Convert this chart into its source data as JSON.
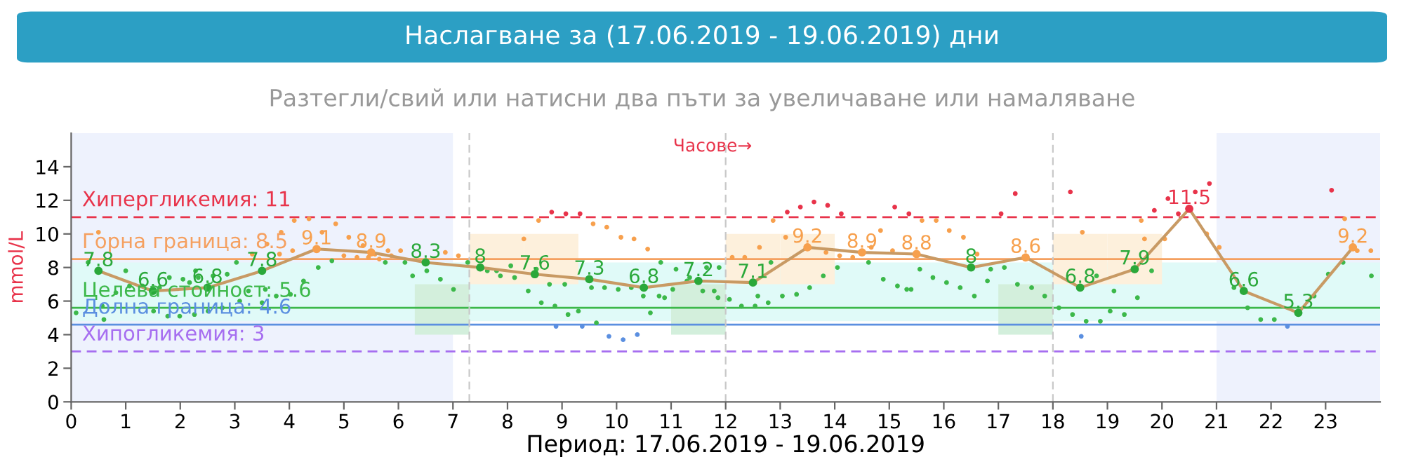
{
  "chart_data": {
    "type": "line",
    "title": "Наслагване за (17.06.2019 - 19.06.2019) дни",
    "subtitle": "Разтегли/свий или натисни два пъти за увеличаване или намаляване",
    "xlabel": "Период: 17.06.2019 - 19.06.2019",
    "ylabel": "mmol/L",
    "xlim": [
      0,
      24
    ],
    "xticks": [
      0,
      1,
      2,
      3,
      4,
      5,
      6,
      7,
      8,
      9,
      10,
      11,
      12,
      13,
      14,
      15,
      16,
      17,
      18,
      19,
      20,
      21,
      22,
      23
    ],
    "ylim": [
      0,
      16
    ],
    "yticks": [
      0,
      2,
      4,
      6,
      8,
      10,
      12,
      14
    ],
    "grid": false,
    "legend": false,
    "marker": "circle",
    "line_style": "solid",
    "annotations": [
      "Часове→"
    ],
    "series": [
      {
        "type": "scatter",
        "x": [
          0.09,
          0.31,
          0.5,
          0.57,
          0.6,
          0.82,
          1.0,
          1.07,
          1.31,
          1.51,
          1.62,
          1.77,
          1.8,
          1.99,
          2.05,
          2.17,
          2.26,
          2.28,
          2.33,
          2.51,
          2.6,
          2.77,
          2.86,
          3.03,
          3.09,
          3.25,
          3.32,
          3.5,
          3.56,
          3.59,
          3.76,
          3.82,
          3.85,
          4.02,
          4.06,
          4.09,
          4.26,
          4.36,
          4.53,
          4.6,
          4.78,
          4.85,
          5.0,
          5.09,
          5.24,
          5.35,
          5.45,
          5.57,
          5.65,
          5.76,
          5.81,
          5.87,
          6.04,
          6.12,
          6.26,
          6.52,
          6.77,
          6.86,
          7.01,
          7.1,
          7.27,
          7.63,
          7.8,
          7.87,
          8.06,
          8.13,
          8.3,
          8.38,
          8.53,
          8.57,
          8.62,
          8.77,
          8.81,
          8.87,
          8.89,
          9.05,
          9.07,
          9.11,
          9.3,
          9.33,
          9.37,
          9.54,
          9.57,
          9.63,
          9.78,
          9.82,
          9.86,
          10.03,
          10.08,
          10.12,
          10.27,
          10.32,
          10.38,
          10.49,
          10.57,
          10.62,
          10.78,
          10.81,
          10.88,
          11.03,
          11.09,
          11.29,
          11.34,
          11.58,
          11.65,
          11.79,
          11.86,
          11.88,
          12.07,
          12.12,
          12.29,
          12.35,
          12.54,
          12.59,
          12.62,
          12.78,
          12.83,
          12.87,
          13.04,
          13.1,
          13.13,
          13.3,
          13.37,
          13.54,
          13.62,
          13.79,
          13.84,
          13.87,
          14.05,
          14.09,
          14.12,
          14.33,
          14.62,
          14.67,
          14.84,
          14.89,
          15.06,
          15.1,
          15.15,
          15.32,
          15.36,
          15.4,
          15.56,
          15.6,
          15.8,
          15.86,
          16.05,
          16.1,
          16.3,
          16.36,
          16.56,
          16.61,
          16.8,
          16.86,
          17.05,
          17.11,
          17.31,
          17.35,
          17.61,
          17.85,
          18.11,
          18.32,
          18.36,
          18.52,
          18.54,
          18.61,
          18.8,
          18.87,
          19.05,
          19.12,
          19.31,
          19.55,
          19.62,
          19.68,
          19.81,
          19.86,
          20.05,
          20.11,
          20.3,
          20.61,
          20.82,
          20.87,
          21.05,
          21.32,
          21.57,
          21.81,
          22.06,
          22.3,
          22.79,
          23.05,
          23.11,
          23.32,
          23.35,
          23.58,
          23.83,
          23.84
        ],
        "values": [
          5.3,
          8.3,
          10.1,
          5.7,
          4.9,
          6.5,
          7.8,
          6.9,
          6.9,
          5.4,
          6.8,
          5.1,
          7.4,
          5.1,
          7.3,
          7.1,
          5.2,
          7.8,
          7.4,
          5.4,
          7.5,
          5.6,
          7.6,
          8.3,
          6.0,
          6.6,
          8.8,
          5.9,
          6.7,
          9.4,
          6.3,
          8.8,
          10.1,
          6.4,
          9.0,
          10.8,
          7.2,
          10.9,
          8.0,
          10.1,
          8.4,
          10.6,
          8.7,
          9.8,
          8.6,
          9.3,
          8.6,
          8.8,
          8.5,
          8.3,
          9.0,
          8.7,
          9.0,
          8.3,
          7.5,
          7.8,
          7.3,
          8.9,
          6.7,
          8.7,
          8.3,
          7.8,
          7.8,
          7.5,
          8.1,
          7.4,
          9.7,
          6.6,
          7.9,
          10.8,
          5.9,
          7.0,
          11.3,
          5.7,
          4.5,
          7.0,
          11.2,
          5.2,
          5.4,
          11.2,
          4.5,
          6.8,
          10.6,
          4.7,
          6.8,
          10.4,
          3.9,
          6.7,
          9.8,
          3.7,
          6.8,
          9.7,
          4.0,
          6.3,
          9.1,
          5.3,
          6.3,
          8.3,
          6.2,
          6.7,
          7.9,
          7.2,
          7.4,
          6.6,
          8.0,
          6.6,
          6.2,
          8.0,
          6.1,
          8.6,
          5.7,
          8.6,
          5.7,
          6.3,
          9.2,
          5.9,
          8.3,
          10.8,
          6.3,
          9.8,
          11.3,
          6.4,
          11.6,
          6.8,
          11.9,
          7.5,
          8.9,
          11.7,
          8.0,
          8.7,
          11.2,
          8.6,
          8.3,
          9.2,
          10.2,
          7.3,
          9.0,
          11.6,
          6.9,
          6.7,
          11.2,
          6.7,
          7.9,
          10.8,
          7.4,
          10.8,
          7.1,
          10.2,
          6.8,
          9.8,
          6.3,
          8.8,
          7.2,
          7.9,
          11.2,
          8.0,
          12.4,
          7.0,
          6.8,
          6.3,
          5.6,
          12.5,
          5.2,
          3.9,
          10.1,
          4.8,
          7.5,
          4.8,
          5.4,
          6.6,
          5.2,
          6.2,
          10.8,
          9.7,
          7.8,
          11.4,
          9.7,
          12.1,
          11.2,
          12.5,
          10.0,
          13.0,
          9.2,
          6.8,
          5.6,
          4.9,
          4.9,
          4.5,
          6.3,
          7.6,
          12.6,
          8.3,
          10.9,
          9.0,
          9.0,
          7.5
        ],
        "colors": [
          "#3cb84a",
          "#3cb84a",
          "#f7a04d",
          "#3cb84a",
          "#3cb84a",
          "#3cb84a",
          "#3cb84a",
          "#3cb84a",
          "#3cb84a",
          "#3cb84a",
          "#3cb84a",
          "#3cb84a",
          "#3cb84a",
          "#3cb84a",
          "#3cb84a",
          "#3cb84a",
          "#3cb84a",
          "#3cb84a",
          "#3cb84a",
          "#3cb84a",
          "#3cb84a",
          "#3cb84a",
          "#3cb84a",
          "#3cb84a",
          "#3cb84a",
          "#3cb84a",
          "#f7a04d",
          "#3cb84a",
          "#3cb84a",
          "#f7a04d",
          "#3cb84a",
          "#f7a04d",
          "#f7a04d",
          "#3cb84a",
          "#f7a04d",
          "#f7a04d",
          "#3cb84a",
          "#f7a04d",
          "#3cb84a",
          "#f7a04d",
          "#3cb84a",
          "#f7a04d",
          "#f7a04d",
          "#f7a04d",
          "#f7a04d",
          "#f7a04d",
          "#f7a04d",
          "#f7a04d",
          "#f7a04d",
          "#3cb84a",
          "#f7a04d",
          "#f7a04d",
          "#f7a04d",
          "#3cb84a",
          "#3cb84a",
          "#3cb84a",
          "#3cb84a",
          "#f7a04d",
          "#3cb84a",
          "#f7a04d",
          "#3cb84a",
          "#3cb84a",
          "#3cb84a",
          "#3cb84a",
          "#3cb84a",
          "#3cb84a",
          "#f7a04d",
          "#3cb84a",
          "#3cb84a",
          "#f7a04d",
          "#3cb84a",
          "#3cb84a",
          "#e8334a",
          "#3cb84a",
          "#5b8fe0",
          "#3cb84a",
          "#e8334a",
          "#3cb84a",
          "#3cb84a",
          "#e8334a",
          "#5b8fe0",
          "#3cb84a",
          "#f7a04d",
          "#3cb84a",
          "#3cb84a",
          "#f7a04d",
          "#5b8fe0",
          "#3cb84a",
          "#f7a04d",
          "#5b8fe0",
          "#3cb84a",
          "#f7a04d",
          "#5b8fe0",
          "#3cb84a",
          "#f7a04d",
          "#3cb84a",
          "#3cb84a",
          "#3cb84a",
          "#3cb84a",
          "#3cb84a",
          "#3cb84a",
          "#3cb84a",
          "#3cb84a",
          "#3cb84a",
          "#3cb84a",
          "#3cb84a",
          "#3cb84a",
          "#3cb84a",
          "#3cb84a",
          "#f7a04d",
          "#3cb84a",
          "#f7a04d",
          "#3cb84a",
          "#3cb84a",
          "#f7a04d",
          "#3cb84a",
          "#3cb84a",
          "#f7a04d",
          "#3cb84a",
          "#f7a04d",
          "#e8334a",
          "#3cb84a",
          "#e8334a",
          "#3cb84a",
          "#e8334a",
          "#3cb84a",
          "#f7a04d",
          "#e8334a",
          "#3cb84a",
          "#f7a04d",
          "#e8334a",
          "#f7a04d",
          "#3cb84a",
          "#f7a04d",
          "#f7a04d",
          "#3cb84a",
          "#f7a04d",
          "#e8334a",
          "#3cb84a",
          "#3cb84a",
          "#e8334a",
          "#3cb84a",
          "#3cb84a",
          "#f7a04d",
          "#3cb84a",
          "#f7a04d",
          "#3cb84a",
          "#f7a04d",
          "#3cb84a",
          "#f7a04d",
          "#3cb84a",
          "#f7a04d",
          "#3cb84a",
          "#3cb84a",
          "#e8334a",
          "#3cb84a",
          "#e8334a",
          "#3cb84a",
          "#3cb84a",
          "#3cb84a",
          "#3cb84a",
          "#e8334a",
          "#3cb84a",
          "#5b8fe0",
          "#f7a04d",
          "#3cb84a",
          "#3cb84a",
          "#3cb84a",
          "#3cb84a",
          "#3cb84a",
          "#3cb84a",
          "#3cb84a",
          "#f7a04d",
          "#f7a04d",
          "#3cb84a",
          "#e8334a",
          "#f7a04d",
          "#e8334a",
          "#e8334a",
          "#e8334a",
          "#f7a04d",
          "#e8334a",
          "#f7a04d",
          "#3cb84a",
          "#3cb84a",
          "#3cb84a",
          "#3cb84a",
          "#5b8fe0",
          "#3cb84a",
          "#3cb84a",
          "#e8334a",
          "#3cb84a",
          "#f7a04d",
          "#f7a04d",
          "#f7a04d",
          "#3cb84a"
        ]
      },
      {
        "color": "#c89a64",
        "x": [
          0.5,
          1.5,
          2.5,
          3.5,
          4.5,
          5.5,
          6.5,
          7.5,
          8.5,
          9.5,
          10.5,
          11.5,
          12.5,
          13.5,
          14.5,
          15.5,
          16.5,
          17.5,
          18.5,
          19.5,
          20.5,
          21.5,
          22.5,
          23.5
        ],
        "values": [
          7.8,
          6.6,
          6.8,
          7.8,
          9.1,
          8.9,
          8.3,
          8,
          7.6,
          7.3,
          6.8,
          7.2,
          7.1,
          9.2,
          8.9,
          8.8,
          8,
          8.6,
          6.8,
          7.9,
          11.5,
          6.6,
          5.3,
          9.2
        ],
        "value_labels": [
          "7.8",
          "6.6",
          "6.8",
          "7.8",
          "9.1",
          "8.9",
          "8.3",
          "8",
          "7.6",
          "7.3",
          "6.8",
          "7.2",
          "7.1",
          "9.2",
          "8.9",
          "8.8",
          "8",
          "8.6",
          "6.8",
          "7.9",
          "11.5",
          "6.6",
          "5.3",
          "9.2"
        ],
        "colors": [
          "#2aa83a",
          "#2aa83a",
          "#2aa83a",
          "#2aa83a",
          "#f7a04d",
          "#f7a04d",
          "#2aa83a",
          "#2aa83a",
          "#2aa83a",
          "#2aa83a",
          "#2aa83a",
          "#2aa83a",
          "#2aa83a",
          "#f7a04d",
          "#f7a04d",
          "#f7a04d",
          "#2aa83a",
          "#f7a04d",
          "#2aa83a",
          "#2aa83a",
          "#e8334a",
          "#2aa83a",
          "#2aa83a",
          "#f7a04d"
        ]
      },
      {
        "type": "bar",
        "color": "#fdf0dc",
        "x": [
          7.8,
          8.8,
          12.5,
          13.5,
          18.5,
          19.5
        ],
        "base": [
          7,
          7,
          7,
          7,
          7,
          7
        ],
        "values": [
          3,
          3,
          3,
          3,
          3,
          3
        ]
      },
      {
        "type": "bar",
        "color": "#d3efdc",
        "x": [
          6.8,
          11.5,
          17.5
        ],
        "base": [
          4,
          4,
          4
        ],
        "values": [
          3,
          3,
          3
        ]
      }
    ],
    "ref_lines": [
      {
        "axis": "y",
        "value": 11,
        "label": "Хипергликемия: 11",
        "color": "#e8334a",
        "line_style": "dashed"
      },
      {
        "axis": "y",
        "value": 8.5,
        "label": "Горна граница: 8.5",
        "color": "#f5a060",
        "line_style": "solid"
      },
      {
        "axis": "y",
        "value": 5.6,
        "label": "Целева стойност: 5.6",
        "color": "#3cb84a",
        "line_style": "solid"
      },
      {
        "axis": "y",
        "value": 4.6,
        "label": "Долна граница: 4.6",
        "color": "#5b8fe0",
        "line_style": "solid"
      },
      {
        "axis": "y",
        "value": 3,
        "label": "Хипогликемия: 3",
        "color": "#a66ef0",
        "line_style": "dashed"
      },
      {
        "axis": "x",
        "value": 7.3,
        "color": "#c8c8c8",
        "line_style": "dashed"
      },
      {
        "axis": "x",
        "value": 12,
        "color": "#c8c8c8",
        "line_style": "dashed"
      },
      {
        "axis": "x",
        "value": 18,
        "color": "#c8c8c8",
        "line_style": "dashed"
      }
    ],
    "bands": [
      {
        "axis": "x",
        "from": 0,
        "to": 7,
        "color": "#eef2fd"
      },
      {
        "axis": "x",
        "from": 21,
        "to": 24,
        "color": "#eef2fd"
      },
      {
        "axis": "y",
        "from": 4.8,
        "to": 8.3,
        "color": "#e0faf8"
      }
    ]
  }
}
